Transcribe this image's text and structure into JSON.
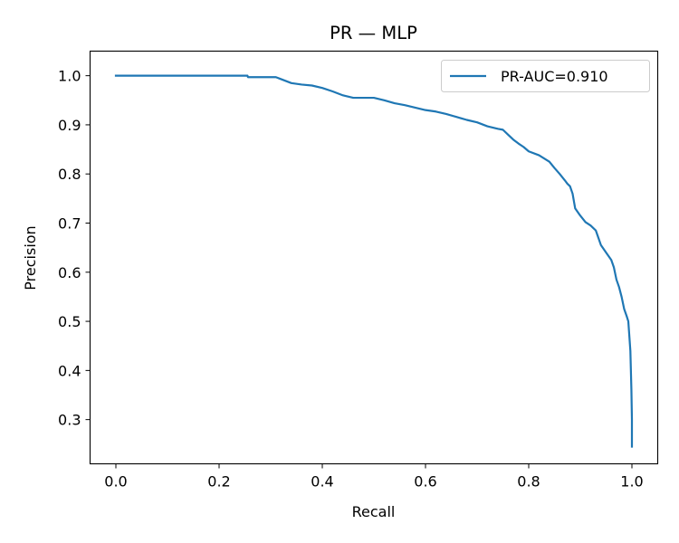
{
  "chart_data": {
    "type": "line",
    "title": "PR — MLP",
    "xlabel": "Recall",
    "ylabel": "Precision",
    "xlim": [
      -0.05,
      1.05
    ],
    "ylim": [
      0.21,
      1.05
    ],
    "xticks": [
      "0.0",
      "0.2",
      "0.4",
      "0.6",
      "0.8",
      "1.0"
    ],
    "yticks": [
      "0.3",
      "0.4",
      "0.5",
      "0.6",
      "0.7",
      "0.8",
      "0.9",
      "1.0"
    ],
    "grid": false,
    "legend_position": "top-right",
    "series": [
      {
        "name": "PR-AUC=0.910",
        "color": "#1f77b4",
        "x": [
          0.0,
          0.255,
          0.256,
          0.31,
          0.32,
          0.34,
          0.36,
          0.38,
          0.4,
          0.42,
          0.44,
          0.46,
          0.48,
          0.5,
          0.52,
          0.54,
          0.56,
          0.58,
          0.6,
          0.62,
          0.64,
          0.66,
          0.68,
          0.7,
          0.72,
          0.74,
          0.75,
          0.76,
          0.77,
          0.78,
          0.79,
          0.8,
          0.82,
          0.84,
          0.85,
          0.86,
          0.87,
          0.875,
          0.88,
          0.885,
          0.89,
          0.9,
          0.91,
          0.92,
          0.93,
          0.935,
          0.94,
          0.95,
          0.96,
          0.965,
          0.97,
          0.975,
          0.98,
          0.985,
          0.99,
          0.993,
          0.995,
          0.997,
          0.998,
          0.999,
          1.0,
          1.0
        ],
        "y": [
          1.0,
          1.0,
          0.997,
          0.997,
          0.993,
          0.985,
          0.982,
          0.98,
          0.975,
          0.968,
          0.96,
          0.955,
          0.955,
          0.955,
          0.95,
          0.944,
          0.94,
          0.935,
          0.93,
          0.927,
          0.922,
          0.916,
          0.91,
          0.905,
          0.897,
          0.892,
          0.89,
          0.88,
          0.87,
          0.862,
          0.855,
          0.846,
          0.838,
          0.825,
          0.812,
          0.8,
          0.787,
          0.78,
          0.775,
          0.76,
          0.73,
          0.715,
          0.702,
          0.695,
          0.685,
          0.67,
          0.655,
          0.64,
          0.625,
          0.61,
          0.585,
          0.57,
          0.55,
          0.525,
          0.51,
          0.5,
          0.47,
          0.44,
          0.4,
          0.36,
          0.3,
          0.245
        ]
      }
    ]
  }
}
